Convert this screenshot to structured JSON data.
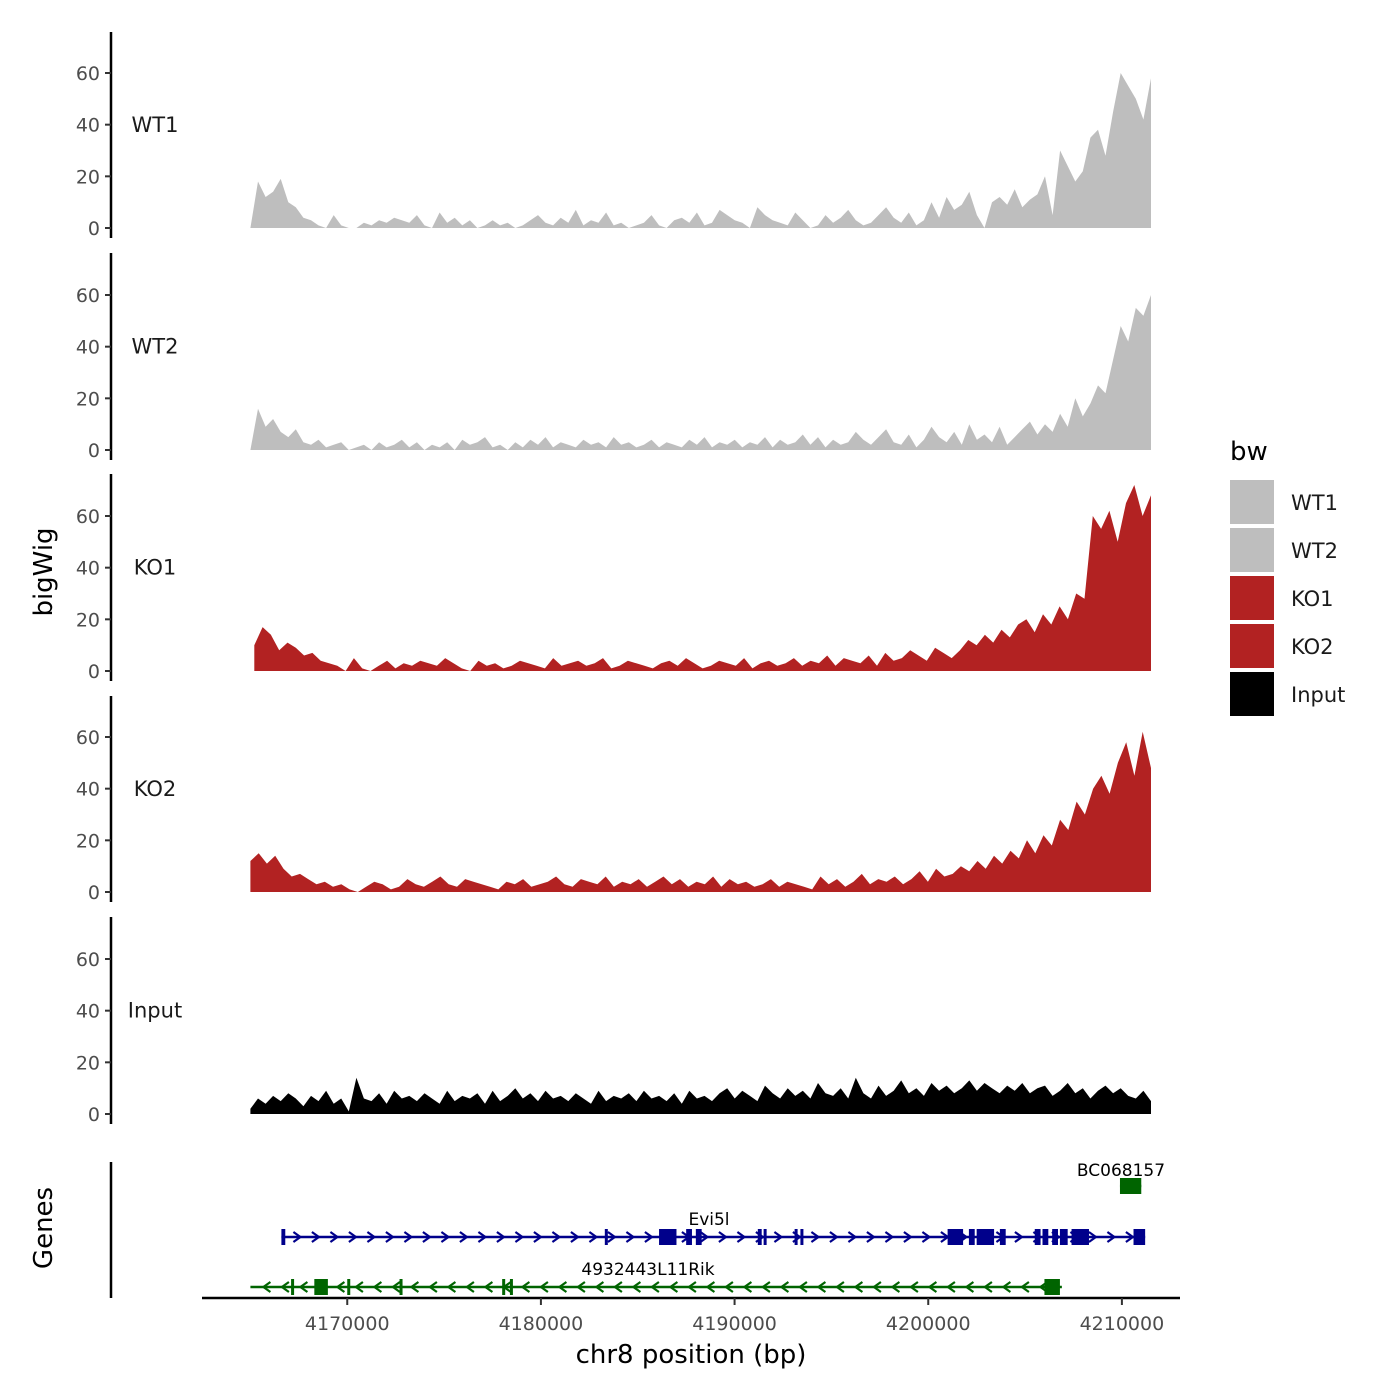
{
  "chart_data": {
    "type": "area",
    "xlabel": "chr8 position (bp)",
    "ylabel": "bigWig",
    "x_range": [
      4162500,
      4213000
    ],
    "x_ticks": [
      "4170000",
      "4180000",
      "4190000",
      "4200000",
      "4210000"
    ],
    "y_range": [
      0,
      75
    ],
    "y_ticks": [
      "0",
      "20",
      "40",
      "60"
    ],
    "grid": false,
    "legend": {
      "title": "bw",
      "placement": "right",
      "entries": [
        {
          "label": "WT1",
          "color": "#bebebe"
        },
        {
          "label": "WT2",
          "color": "#bebebe"
        },
        {
          "label": "KO1",
          "color": "#b22222"
        },
        {
          "label": "KO2",
          "color": "#b22222"
        },
        {
          "label": "Input",
          "color": "#000000"
        }
      ]
    },
    "series": [
      {
        "name": "WT1",
        "color": "#bebebe",
        "x_start": 4165000,
        "x_end": 4211500,
        "values": [
          0,
          18,
          12,
          14,
          19,
          10,
          8,
          4,
          3,
          1,
          0,
          5,
          1,
          0,
          0,
          2,
          1,
          3,
          2,
          4,
          3,
          2,
          5,
          1,
          0,
          6,
          2,
          4,
          1,
          3,
          0,
          1,
          3,
          1,
          2,
          0,
          1,
          3,
          5,
          2,
          1,
          4,
          2,
          7,
          1,
          3,
          2,
          6,
          1,
          2,
          0,
          1,
          2,
          5,
          1,
          0,
          3,
          4,
          2,
          6,
          1,
          2,
          7,
          5,
          3,
          2,
          0,
          8,
          5,
          3,
          2,
          1,
          6,
          3,
          0,
          1,
          5,
          2,
          4,
          7,
          3,
          1,
          2,
          5,
          8,
          4,
          2,
          6,
          1,
          3,
          10,
          4,
          12,
          7,
          9,
          14,
          5,
          0,
          10,
          12,
          9,
          15,
          8,
          11,
          13,
          20,
          5,
          30,
          24,
          18,
          22,
          35,
          38,
          28,
          45,
          60,
          55,
          50,
          42,
          58
        ]
      },
      {
        "name": "WT2",
        "color": "#bebebe",
        "x_start": 4165000,
        "x_end": 4211500,
        "values": [
          0,
          16,
          9,
          12,
          7,
          5,
          8,
          3,
          2,
          4,
          1,
          2,
          3,
          0,
          1,
          2,
          0,
          3,
          1,
          2,
          4,
          1,
          3,
          0,
          2,
          1,
          3,
          0,
          4,
          2,
          3,
          5,
          1,
          2,
          0,
          3,
          1,
          4,
          2,
          5,
          1,
          3,
          2,
          1,
          4,
          2,
          3,
          1,
          5,
          2,
          3,
          1,
          2,
          4,
          1,
          3,
          2,
          1,
          4,
          2,
          5,
          1,
          3,
          2,
          4,
          1,
          3,
          2,
          5,
          1,
          4,
          2,
          3,
          6,
          2,
          5,
          1,
          4,
          2,
          3,
          7,
          4,
          2,
          5,
          8,
          3,
          2,
          6,
          1,
          4,
          9,
          5,
          3,
          7,
          2,
          10,
          4,
          6,
          3,
          9,
          2,
          5,
          8,
          11,
          6,
          10,
          7,
          14,
          9,
          20,
          13,
          18,
          25,
          22,
          35,
          48,
          42,
          55,
          52,
          60
        ]
      },
      {
        "name": "KO1",
        "color": "#b22222",
        "x_start": 4165200,
        "x_end": 4211500,
        "values": [
          10,
          17,
          14,
          8,
          11,
          9,
          6,
          7,
          4,
          3,
          2,
          0,
          5,
          1,
          0,
          2,
          4,
          1,
          3,
          2,
          4,
          3,
          2,
          5,
          3,
          1,
          0,
          4,
          2,
          3,
          1,
          2,
          4,
          3,
          2,
          1,
          5,
          2,
          3,
          4,
          2,
          3,
          5,
          1,
          2,
          4,
          3,
          2,
          1,
          3,
          4,
          2,
          5,
          3,
          1,
          2,
          4,
          3,
          2,
          5,
          1,
          3,
          4,
          2,
          3,
          5,
          2,
          4,
          3,
          6,
          2,
          5,
          4,
          3,
          6,
          2,
          7,
          4,
          5,
          8,
          6,
          4,
          9,
          7,
          5,
          8,
          12,
          10,
          14,
          11,
          16,
          13,
          18,
          20,
          15,
          22,
          18,
          25,
          20,
          30,
          28,
          60,
          55,
          62,
          50,
          65,
          72,
          60,
          68
        ]
      },
      {
        "name": "KO2",
        "color": "#b22222",
        "x_start": 4165000,
        "x_end": 4211500,
        "values": [
          12,
          15,
          11,
          14,
          9,
          6,
          7,
          5,
          3,
          4,
          2,
          3,
          1,
          0,
          2,
          4,
          3,
          1,
          2,
          5,
          3,
          2,
          4,
          6,
          3,
          2,
          5,
          4,
          3,
          2,
          1,
          4,
          3,
          5,
          2,
          3,
          4,
          6,
          3,
          2,
          5,
          4,
          3,
          6,
          2,
          4,
          3,
          5,
          2,
          4,
          6,
          3,
          5,
          2,
          4,
          3,
          6,
          2,
          5,
          3,
          4,
          2,
          3,
          5,
          2,
          4,
          3,
          2,
          1,
          6,
          3,
          5,
          2,
          4,
          7,
          3,
          5,
          4,
          6,
          3,
          5,
          8,
          4,
          9,
          6,
          7,
          10,
          8,
          12,
          9,
          14,
          11,
          16,
          13,
          20,
          15,
          22,
          18,
          28,
          24,
          35,
          30,
          40,
          45,
          38,
          50,
          58,
          45,
          62,
          48
        ]
      },
      {
        "name": "Input",
        "color": "#000000",
        "x_start": 4165000,
        "x_end": 4211500,
        "values": [
          2,
          6,
          4,
          7,
          5,
          8,
          6,
          3,
          7,
          5,
          9,
          4,
          6,
          1,
          14,
          6,
          5,
          8,
          4,
          9,
          6,
          7,
          5,
          8,
          6,
          4,
          9,
          5,
          7,
          6,
          8,
          4,
          9,
          5,
          7,
          10,
          6,
          8,
          5,
          9,
          6,
          7,
          5,
          8,
          6,
          4,
          9,
          5,
          7,
          6,
          8,
          5,
          9,
          6,
          7,
          5,
          8,
          4,
          9,
          6,
          7,
          5,
          8,
          10,
          6,
          9,
          7,
          5,
          11,
          8,
          6,
          10,
          7,
          9,
          6,
          12,
          8,
          7,
          10,
          6,
          14,
          8,
          6,
          11,
          7,
          9,
          13,
          8,
          10,
          7,
          12,
          9,
          11,
          8,
          10,
          13,
          9,
          12,
          10,
          8,
          11,
          9,
          12,
          8,
          10,
          11,
          7,
          9,
          12,
          8,
          10,
          6,
          9,
          11,
          8,
          10,
          7,
          6,
          9,
          5
        ]
      }
    ]
  },
  "genes_track": {
    "label": "Genes",
    "genes": [
      {
        "name": "BC068157",
        "strand": "+",
        "color": "#006400",
        "start": 4209900,
        "end": 4211000,
        "exons": [
          [
            4209900,
            4211000
          ]
        ]
      },
      {
        "name": "Evi5l",
        "strand": "+",
        "color": "#00008b",
        "start": 4166600,
        "end": 4211200,
        "exons": [
          [
            4166600,
            4166800
          ],
          [
            4183300,
            4183450
          ],
          [
            4186100,
            4187000
          ],
          [
            4187500,
            4187800
          ],
          [
            4188000,
            4188300
          ],
          [
            4191200,
            4191400
          ],
          [
            4191500,
            4191650
          ],
          [
            4193100,
            4193250
          ],
          [
            4193400,
            4193550
          ],
          [
            4201000,
            4201800
          ],
          [
            4202100,
            4202400
          ],
          [
            4202500,
            4203400
          ],
          [
            4203700,
            4204000
          ],
          [
            4205500,
            4205800
          ],
          [
            4205900,
            4206200
          ],
          [
            4206400,
            4206700
          ],
          [
            4206800,
            4207200
          ],
          [
            4207400,
            4208300
          ],
          [
            4210600,
            4211200
          ]
        ]
      },
      {
        "name": "4932443L11Rik",
        "strand": "-",
        "color": "#006400",
        "start": 4165000,
        "end": 4206900,
        "exons": [
          [
            4167100,
            4167250
          ],
          [
            4168300,
            4169000
          ],
          [
            4170000,
            4170120
          ],
          [
            4172700,
            4172850
          ],
          [
            4178000,
            4178150
          ],
          [
            4178400,
            4178500
          ],
          [
            4206000,
            4206800
          ]
        ]
      }
    ]
  }
}
